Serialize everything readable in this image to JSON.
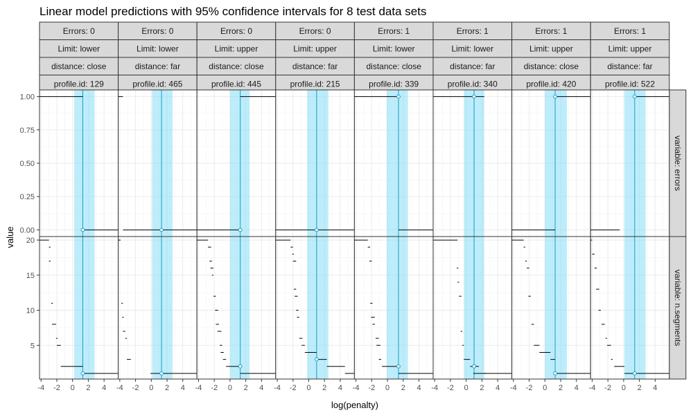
{
  "chart_data": {
    "type": "step-line faceted",
    "title": "Linear model predictions with 95% confidence intervals for 8 test data sets",
    "xlabel": "log(penalty)",
    "ylabel": "value",
    "x_ticks": [
      -4,
      -2,
      0,
      2,
      4
    ],
    "xlim": [
      -4.2,
      5.8
    ],
    "grid": true,
    "colors": {
      "interval": "#87dff5",
      "prediction_line": "#1a9cc7",
      "step_line": "#000000",
      "strip_fill": "#d9d9d9",
      "grid": "#ebebeb",
      "panel_border": "#333333"
    },
    "rows": [
      {
        "label": "variable: errors",
        "ylim": [
          -0.05,
          1.05
        ],
        "ticks": [
          0,
          0.25,
          0.5,
          0.75,
          1
        ],
        "tick_labels": [
          "0.00",
          "0.25",
          "0.50",
          "0.75",
          "1.00"
        ]
      },
      {
        "label": "variable: n.segments",
        "ylim": [
          0.2,
          20.5
        ],
        "ticks": [
          5,
          10,
          15,
          20
        ],
        "tick_labels": [
          "5",
          "10",
          "15",
          "20"
        ]
      }
    ],
    "panels": [
      {
        "errors_label": "Errors: 0",
        "limit_label": "Limit: lower",
        "distance_label": "distance: close",
        "profile_label": "profile.id: 129",
        "pred": 1.3,
        "ci": [
          0.2,
          2.8
        ],
        "err_segments": [
          [
            -4.3,
            1.3,
            1
          ],
          [
            1.3,
            6,
            0
          ]
        ],
        "seg_segments": [
          [
            -4.3,
            -3,
            20
          ],
          [
            -3,
            -2.8,
            19
          ],
          [
            -3,
            -2.8,
            17
          ],
          [
            -2.7,
            -2.5,
            11
          ],
          [
            -2.6,
            -2.1,
            8
          ],
          [
            -2.1,
            -1.9,
            6
          ],
          [
            -2.0,
            -1.5,
            5
          ],
          [
            -1.5,
            1.3,
            2
          ],
          [
            1.3,
            6,
            1
          ]
        ],
        "err_points": [
          [
            1.3,
            0
          ]
        ],
        "seg_points": [
          [
            1.3,
            1
          ]
        ]
      },
      {
        "errors_label": "Errors: 0",
        "limit_label": "Limit: lower",
        "distance_label": "distance: far",
        "profile_label": "profile.id: 465",
        "pred": 1.3,
        "ci": [
          0.1,
          2.7
        ],
        "err_segments": [
          [
            -4.3,
            -3.6,
            1
          ],
          [
            -3.6,
            6,
            0
          ]
        ],
        "seg_segments": [
          [
            -4.3,
            -3.9,
            20
          ],
          [
            -3.8,
            -3.6,
            11
          ],
          [
            -3.7,
            -3.5,
            9
          ],
          [
            -3.6,
            -3.3,
            7
          ],
          [
            -3.3,
            -3.1,
            6
          ],
          [
            -3.1,
            -2.6,
            3
          ],
          [
            -0.1,
            6,
            1
          ]
        ],
        "err_points": [
          [
            1.3,
            0
          ]
        ],
        "seg_points": [
          [
            1.3,
            1
          ]
        ]
      },
      {
        "errors_label": "Errors: 0",
        "limit_label": "Limit: upper",
        "distance_label": "distance: close",
        "profile_label": "profile.id: 445",
        "pred": 1.3,
        "ci": [
          0.0,
          2.5
        ],
        "err_segments": [
          [
            -4.3,
            1.3,
            0
          ],
          [
            1.3,
            6,
            1
          ]
        ],
        "seg_segments": [
          [
            -4.3,
            -2.8,
            20
          ],
          [
            -2.8,
            -2.4,
            19
          ],
          [
            -2.6,
            -2.3,
            17
          ],
          [
            -2.5,
            -2.1,
            16
          ],
          [
            -2.3,
            -2.1,
            15
          ],
          [
            -2.1,
            -1.8,
            12
          ],
          [
            -1.9,
            -1.5,
            10
          ],
          [
            -1.8,
            -1.4,
            8
          ],
          [
            -1.6,
            -1.1,
            7
          ],
          [
            -1.3,
            -1.0,
            5
          ],
          [
            -1.2,
            -0.8,
            4
          ],
          [
            -0.9,
            -0.5,
            3
          ],
          [
            -0.5,
            1.3,
            2
          ],
          [
            1.3,
            6,
            1
          ]
        ],
        "err_points": [
          [
            1.3,
            0
          ]
        ],
        "seg_points": [
          [
            1.3,
            2
          ]
        ]
      },
      {
        "errors_label": "Errors: 0",
        "limit_label": "Limit: upper",
        "distance_label": "distance: far",
        "profile_label": "profile.id: 215",
        "pred": 1.0,
        "ci": [
          -0.2,
          2.5
        ],
        "err_segments": [
          [
            -4.3,
            6,
            0
          ]
        ],
        "seg_segments": [
          [
            -4.3,
            -2.3,
            20
          ],
          [
            -2.3,
            -2.0,
            19
          ],
          [
            -2.1,
            -1.9,
            18
          ],
          [
            -2.0,
            -1.6,
            17
          ],
          [
            -1.9,
            -1.6,
            13
          ],
          [
            -1.8,
            -1.4,
            12
          ],
          [
            -1.6,
            -1.3,
            10
          ],
          [
            -1.5,
            -1.2,
            9
          ],
          [
            -1.2,
            -0.8,
            6
          ],
          [
            -0.9,
            -0.5,
            5
          ],
          [
            -0.5,
            1.0,
            4
          ],
          [
            1.0,
            2.3,
            3
          ],
          [
            2.3,
            4.6,
            2
          ],
          [
            4.6,
            6,
            1
          ]
        ],
        "err_points": [
          [
            1.0,
            0
          ]
        ],
        "seg_points": [
          [
            1.0,
            3
          ]
        ]
      },
      {
        "errors_label": "Errors: 1",
        "limit_label": "Limit: lower",
        "distance_label": "distance: close",
        "profile_label": "profile.id: 339",
        "pred": 1.4,
        "ci": [
          -0.1,
          2.6
        ],
        "err_segments": [
          [
            -4.3,
            1.4,
            1
          ],
          [
            1.4,
            6,
            0
          ]
        ],
        "seg_segments": [
          [
            -4.3,
            -2.5,
            20
          ],
          [
            -2.5,
            -2.2,
            19
          ],
          [
            -2.3,
            -2.0,
            17
          ],
          [
            -2.2,
            -1.9,
            11
          ],
          [
            -2.1,
            -1.6,
            9
          ],
          [
            -1.9,
            -1.6,
            8
          ],
          [
            -1.5,
            -1.1,
            6
          ],
          [
            -1.4,
            -0.9,
            5
          ],
          [
            -1.1,
            -0.8,
            3
          ],
          [
            -0.7,
            1.4,
            2
          ],
          [
            1.4,
            6,
            1
          ]
        ],
        "err_points": [
          [
            1.4,
            1
          ]
        ],
        "seg_points": [
          [
            1.4,
            2
          ]
        ]
      },
      {
        "errors_label": "Errors: 1",
        "limit_label": "Limit: lower",
        "distance_label": "distance: far",
        "profile_label": "profile.id: 340",
        "pred": 1.0,
        "ci": [
          -0.3,
          2.3
        ],
        "err_segments": [
          [
            -4.3,
            1.0,
            1
          ],
          [
            1.0,
            2.3,
            1
          ]
        ],
        "seg_segments": [
          [
            -4.3,
            -1.1,
            20
          ],
          [
            -1.2,
            -1.0,
            16
          ],
          [
            -1.1,
            -0.9,
            14
          ],
          [
            -0.9,
            -0.6,
            12
          ],
          [
            -0.7,
            -0.5,
            7
          ],
          [
            -0.5,
            -0.3,
            5
          ],
          [
            -0.3,
            0.5,
            3
          ],
          [
            0.5,
            1.0,
            2
          ],
          [
            1.0,
            1.6,
            2
          ],
          [
            0.9,
            2.5,
            1
          ],
          [
            2.3,
            6,
            1
          ]
        ],
        "err_points": [
          [
            1.0,
            1
          ]
        ],
        "seg_points": [
          [
            1.0,
            2
          ]
        ]
      },
      {
        "errors_label": "Errors: 1",
        "limit_label": "Limit: upper",
        "distance_label": "distance: close",
        "profile_label": "profile.id: 420",
        "pred": 1.3,
        "ci": [
          0.0,
          2.8
        ],
        "err_segments": [
          [
            -4.3,
            1.3,
            0
          ],
          [
            1.3,
            6,
            1
          ]
        ],
        "seg_segments": [
          [
            -4.3,
            -2.7,
            20
          ],
          [
            -2.7,
            -2.5,
            19
          ],
          [
            -2.5,
            -2.3,
            17
          ],
          [
            -2.3,
            -2.0,
            16
          ],
          [
            -2.1,
            -1.8,
            12
          ],
          [
            -1.7,
            -1.4,
            8
          ],
          [
            -1.4,
            -0.7,
            5
          ],
          [
            -0.7,
            0.7,
            4
          ],
          [
            0.7,
            1.3,
            3
          ],
          [
            1.3,
            6,
            1
          ]
        ],
        "err_points": [
          [
            1.3,
            1
          ]
        ],
        "seg_points": [
          [
            1.3,
            1
          ]
        ]
      },
      {
        "errors_label": "Errors: 1",
        "limit_label": "Limit: upper",
        "distance_label": "distance: far",
        "profile_label": "profile.id: 522",
        "pred": 1.4,
        "ci": [
          0.1,
          2.8
        ],
        "err_segments": [
          [
            -4.3,
            -0.5,
            0
          ],
          [
            1.4,
            6,
            1
          ]
        ],
        "seg_segments": [
          [
            -4.3,
            -4.0,
            20
          ],
          [
            -4.0,
            -3.7,
            18
          ],
          [
            -3.7,
            -3.4,
            16
          ],
          [
            -3.5,
            -3.1,
            13
          ],
          [
            -3.2,
            -2.9,
            10
          ],
          [
            -2.8,
            -2.4,
            8
          ],
          [
            -2.3,
            -2.1,
            6
          ],
          [
            -2.1,
            -1.6,
            5
          ],
          [
            -1.6,
            -1.4,
            3
          ],
          [
            -1.2,
            0.1,
            2
          ],
          [
            0.1,
            6,
            1
          ]
        ],
        "err_points": [
          [
            1.4,
            1
          ]
        ],
        "seg_points": [
          [
            1.4,
            1
          ]
        ]
      }
    ]
  }
}
